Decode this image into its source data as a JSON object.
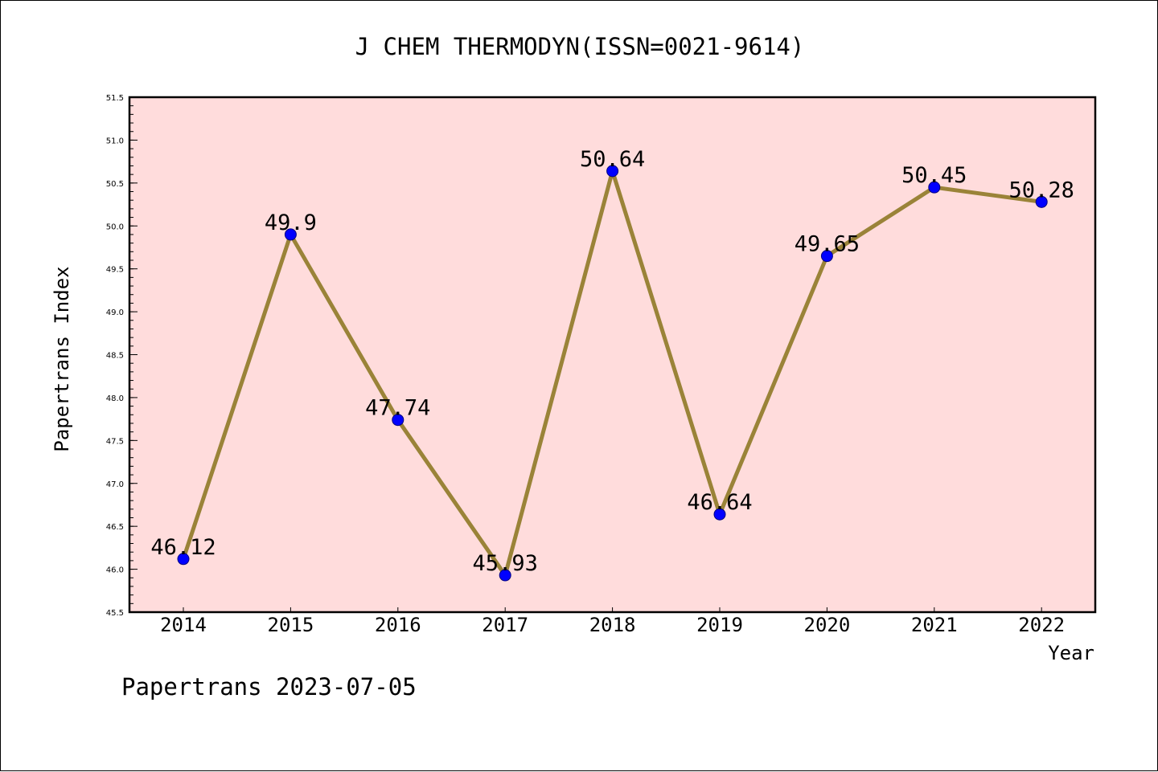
{
  "chart_data": {
    "type": "line",
    "title": "J CHEM THERMODYN(ISSN=0021-9614)",
    "xlabel": "Year",
    "ylabel": "Papertrans Index",
    "categories": [
      "2014",
      "2015",
      "2016",
      "2017",
      "2018",
      "2019",
      "2020",
      "2021",
      "2022"
    ],
    "series": [
      {
        "values": [
          46.12,
          49.9,
          47.74,
          45.93,
          50.64,
          46.64,
          49.65,
          50.45,
          50.28
        ],
        "labels": [
          "46.12",
          "49.9",
          "47.74",
          "45.93",
          "50.64",
          "46.64",
          "49.65",
          "50.45",
          "50.28"
        ]
      }
    ],
    "ylim": [
      45.5,
      51.5
    ],
    "yticks": [
      "45.5",
      "46.0",
      "46.5",
      "47.0",
      "47.5",
      "48.0",
      "48.5",
      "49.0",
      "49.5",
      "50.0",
      "50.5",
      "51.0",
      "51.5"
    ],
    "grid": false,
    "legend": "none",
    "colors": {
      "plot_background": "#ffdcdc",
      "line": "#9a8338",
      "marker_fill": "#0000ff",
      "marker_edge": "#000080"
    }
  },
  "footer": {
    "watermark": "Papertrans 2023-07-05"
  }
}
